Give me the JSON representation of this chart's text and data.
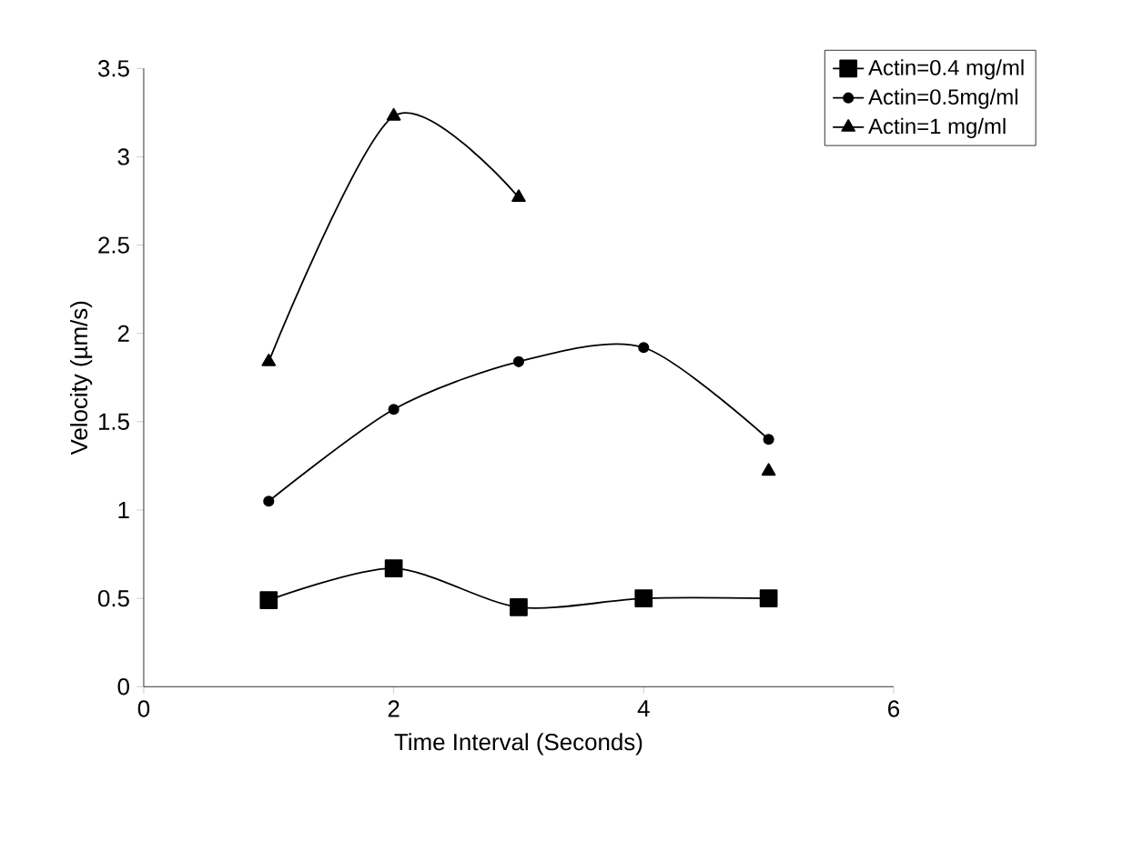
{
  "chart_data": {
    "type": "line",
    "xlabel": "Time Interval (Seconds)",
    "ylabel": "Velocity (µm/s)",
    "x": [
      1,
      2,
      3,
      4,
      5
    ],
    "series": [
      {
        "name": "Actin=0.4 mg/ml",
        "color": "#000000",
        "marker": "square",
        "values": [
          0.49,
          0.67,
          0.45,
          0.5,
          0.5
        ]
      },
      {
        "name": "Actin=0.5mg/ml",
        "color": "#000000",
        "marker": "circle",
        "values": [
          1.05,
          1.57,
          1.84,
          1.92,
          1.4
        ]
      },
      {
        "name": "Actin=1 mg/ml",
        "color": "#000000",
        "marker": "triangle",
        "values": [
          1.84,
          3.23,
          2.77,
          null,
          1.22
        ]
      }
    ],
    "xlim": [
      0,
      6
    ],
    "xticks": [
      0,
      2,
      4,
      6
    ],
    "ylim": [
      0,
      3.5
    ],
    "yticks": [
      0,
      0.5,
      1,
      1.5,
      2,
      2.5,
      3,
      3.5
    ],
    "legend": "top right",
    "grid": false,
    "line_style": "solid"
  }
}
